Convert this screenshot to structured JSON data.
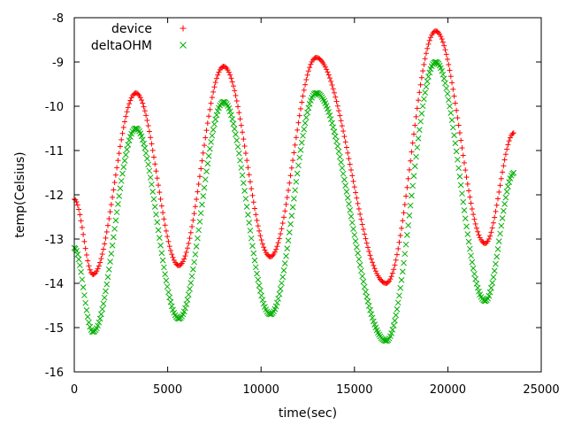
{
  "chart_data": {
    "type": "scatter",
    "title": "",
    "xlabel": "time(sec)",
    "ylabel": "temp(Celsius)",
    "xlim": [
      0,
      25000
    ],
    "ylim": [
      -16,
      -8
    ],
    "xticks": [
      0,
      5000,
      10000,
      15000,
      20000,
      25000
    ],
    "yticks": [
      -16,
      -15,
      -14,
      -13,
      -12,
      -11,
      -10,
      -9,
      -8
    ],
    "grid": false,
    "legend": "top-left",
    "series": [
      {
        "name": "device",
        "marker": "plus",
        "color": "#ff0000",
        "x": [
          0,
          1000,
          3300,
          5600,
          8000,
          10500,
          12950,
          16700,
          19350,
          22000,
          23550
        ],
        "y": [
          -12.1,
          -13.8,
          -9.7,
          -13.6,
          -9.1,
          -13.4,
          -8.9,
          -14.0,
          -8.3,
          -13.1,
          -10.6
        ]
      },
      {
        "name": "deltaOHM",
        "marker": "x",
        "color": "#00b000",
        "x": [
          0,
          1000,
          3300,
          5600,
          8000,
          10500,
          12950,
          16700,
          19350,
          22000,
          23550
        ],
        "y": [
          -13.2,
          -15.1,
          -10.5,
          -14.8,
          -9.9,
          -14.7,
          -9.7,
          -15.3,
          -9.0,
          -14.4,
          -11.5
        ]
      }
    ]
  }
}
